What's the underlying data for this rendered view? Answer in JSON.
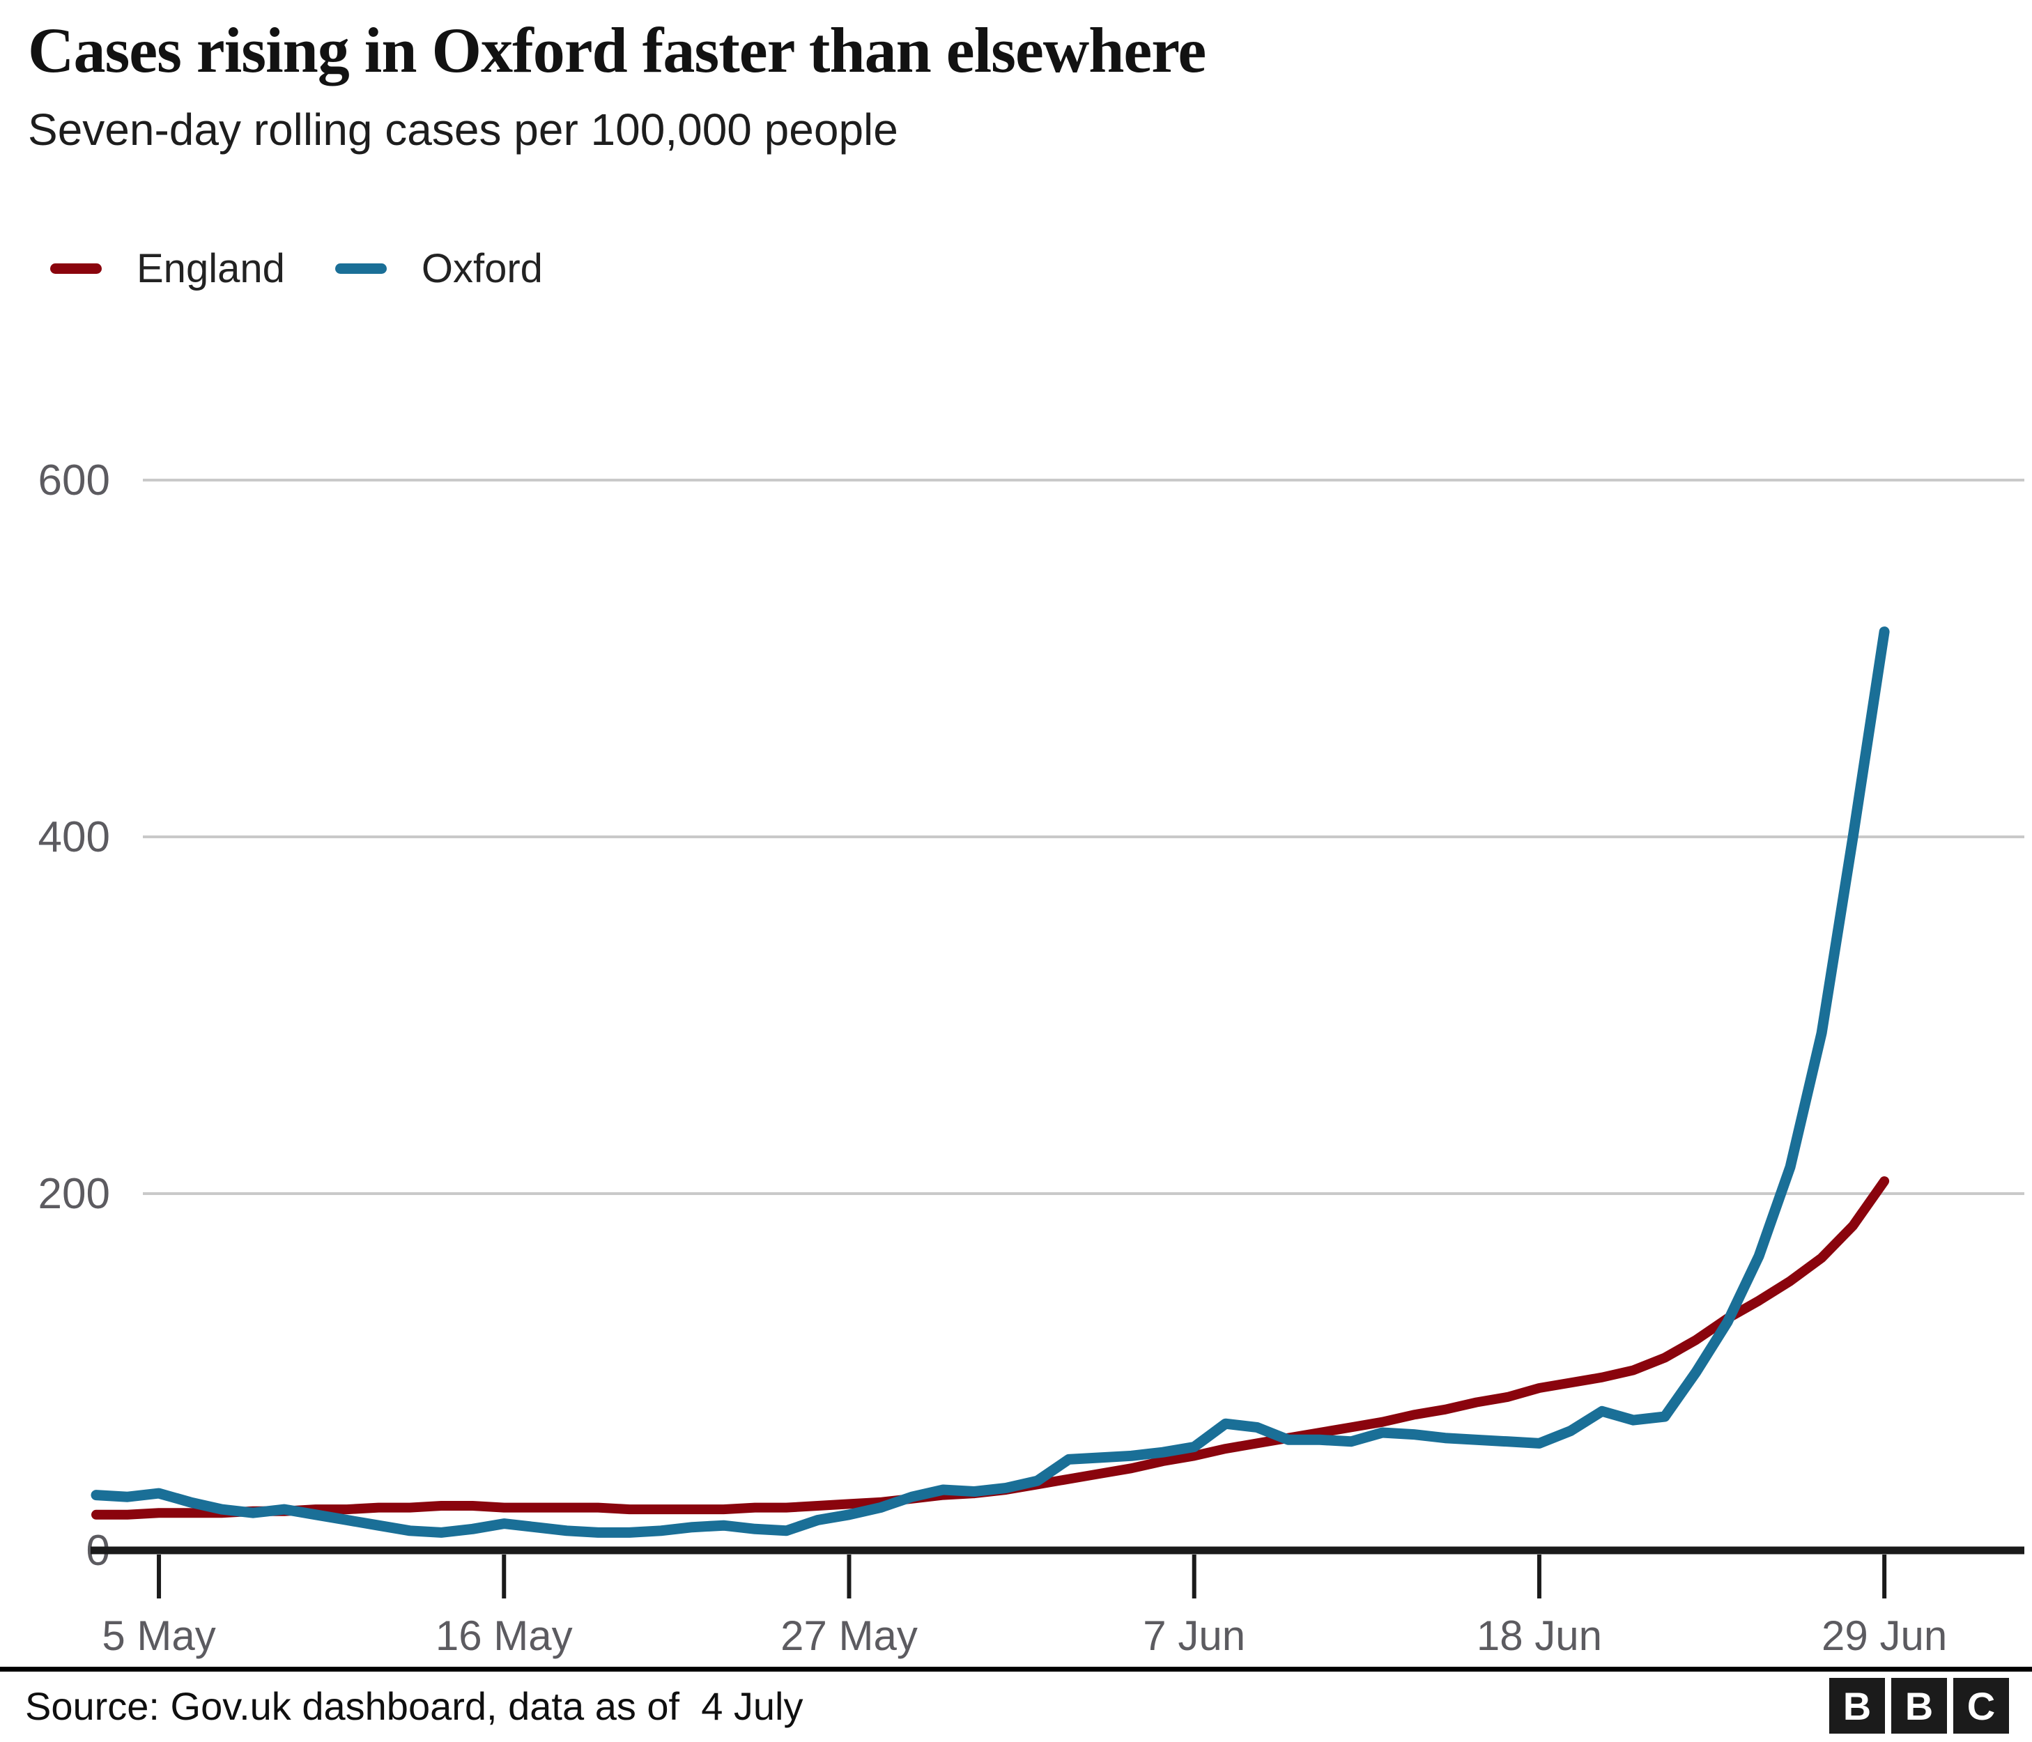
{
  "chart_data": {
    "type": "line",
    "title": "Cases rising in Oxford faster than elsewhere",
    "subtitle": "Seven-day rolling cases per 100,000 people",
    "xlabel": "",
    "ylabel": "",
    "ylim": [
      0,
      650
    ],
    "grid": "horizontal",
    "legend_position": "top-left",
    "x": [
      "3 May",
      "4 May",
      "5 May",
      "6 May",
      "7 May",
      "8 May",
      "9 May",
      "10 May",
      "11 May",
      "12 May",
      "13 May",
      "14 May",
      "15 May",
      "16 May",
      "17 May",
      "18 May",
      "19 May",
      "20 May",
      "21 May",
      "22 May",
      "23 May",
      "24 May",
      "25 May",
      "26 May",
      "27 May",
      "28 May",
      "29 May",
      "30 May",
      "31 May",
      "1 Jun",
      "2 Jun",
      "3 Jun",
      "4 Jun",
      "5 Jun",
      "6 Jun",
      "7 Jun",
      "8 Jun",
      "9 Jun",
      "10 Jun",
      "11 Jun",
      "12 Jun",
      "13 Jun",
      "14 Jun",
      "15 Jun",
      "16 Jun",
      "17 Jun",
      "18 Jun",
      "19 Jun",
      "20 Jun",
      "21 Jun",
      "22 Jun",
      "23 Jun",
      "24 Jun",
      "25 Jun",
      "26 Jun",
      "27 Jun",
      "28 Jun",
      "29 Jun"
    ],
    "series": [
      {
        "name": "England",
        "color": "#8a040d",
        "values": [
          20,
          20,
          21,
          21,
          21,
          22,
          22,
          23,
          23,
          24,
          24,
          25,
          25,
          24,
          24,
          24,
          24,
          23,
          23,
          23,
          23,
          24,
          24,
          25,
          26,
          27,
          29,
          31,
          32,
          34,
          37,
          40,
          43,
          46,
          50,
          53,
          57,
          60,
          63,
          66,
          69,
          72,
          76,
          79,
          83,
          86,
          91,
          94,
          97,
          101,
          108,
          118,
          130,
          140,
          151,
          164,
          182,
          207
        ]
      },
      {
        "name": "Oxford",
        "color": "#1a6f97",
        "values": [
          31,
          30,
          32,
          27,
          23,
          21,
          23,
          20,
          17,
          14,
          11,
          10,
          12,
          15,
          13,
          11,
          10,
          10,
          11,
          13,
          14,
          12,
          11,
          17,
          20,
          24,
          30,
          34,
          33,
          35,
          39,
          51,
          52,
          53,
          55,
          58,
          71,
          69,
          62,
          62,
          61,
          66,
          65,
          63,
          62,
          61,
          60,
          67,
          78,
          73,
          75,
          100,
          128,
          165,
          215,
          290,
          400,
          515
        ]
      }
    ],
    "y_ticks": [
      "0",
      "200",
      "400",
      "600"
    ],
    "y_tick_values": [
      0,
      200,
      400,
      600
    ],
    "x_tick_labels": [
      "5 May",
      "16 May",
      "27 May",
      "7 Jun",
      "18 Jun",
      "29 Jun"
    ],
    "x_tick_day_index": [
      2,
      13,
      24,
      35,
      46,
      57
    ]
  },
  "footer": {
    "source": "Source: Gov.uk dashboard, data as of  4 July",
    "logo_letters": [
      "B",
      "B",
      "C"
    ]
  }
}
